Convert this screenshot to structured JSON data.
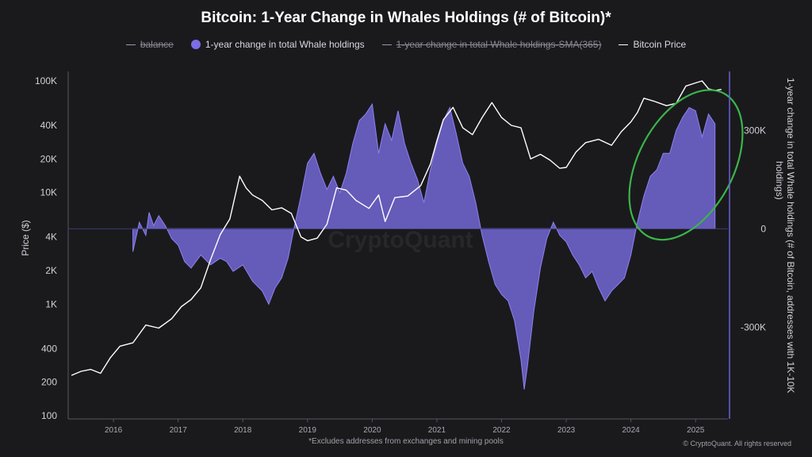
{
  "chart_data": {
    "type": "area",
    "title": "Bitcoin: 1-Year Change in Whales Holdings (# of Bitcoin)*",
    "legend": [
      {
        "label": "balance",
        "style": "line",
        "strikethrough": true
      },
      {
        "label": "1-year change in total Whale holdings",
        "style": "dot",
        "color": "#7b6ee6"
      },
      {
        "label": "1-year change in total Whale holdings-SMA(365)",
        "style": "line",
        "strikethrough": true
      },
      {
        "label": "Bitcoin Price",
        "style": "line",
        "color": "#ffffff"
      }
    ],
    "left_axis": {
      "label": "Price ($)",
      "scale": "log",
      "range": [
        100,
        100000
      ],
      "ticks": [
        {
          "value": 100000,
          "label": "100K"
        },
        {
          "value": 40000,
          "label": "40K"
        },
        {
          "value": 20000,
          "label": "20K"
        },
        {
          "value": 10000,
          "label": "10K"
        },
        {
          "value": 4000,
          "label": "4K"
        },
        {
          "value": 2000,
          "label": "2K"
        },
        {
          "value": 1000,
          "label": "1K"
        },
        {
          "value": 400,
          "label": "400"
        },
        {
          "value": 200,
          "label": "200"
        },
        {
          "value": 100,
          "label": "100"
        }
      ]
    },
    "right_axis": {
      "label": "1-year change in total Whale holdings (# of Bitcoin, addresses with 1K-10K holdings)",
      "range": [
        -580000,
        480000
      ],
      "ticks": [
        {
          "value": 300000,
          "label": "300K"
        },
        {
          "value": 0,
          "label": "0"
        },
        {
          "value": -300000,
          "label": "-300K"
        }
      ]
    },
    "x_axis": {
      "range": [
        2015.3,
        2025.5
      ],
      "ticks": [
        {
          "value": 2016,
          "label": "2016"
        },
        {
          "value": 2017,
          "label": "2017"
        },
        {
          "value": 2018,
          "label": "2018"
        },
        {
          "value": 2019,
          "label": "2019"
        },
        {
          "value": 2020,
          "label": "2020"
        },
        {
          "value": 2021,
          "label": "2021"
        },
        {
          "value": 2022,
          "label": "2022"
        },
        {
          "value": 2023,
          "label": "2023"
        },
        {
          "value": 2024,
          "label": "2024"
        },
        {
          "value": 2025,
          "label": "2025"
        }
      ]
    },
    "series": [
      {
        "name": "Bitcoin Price",
        "axis": "left",
        "color": "#ffffff",
        "points": [
          [
            2015.35,
            230
          ],
          [
            2015.5,
            250
          ],
          [
            2015.65,
            260
          ],
          [
            2015.8,
            240
          ],
          [
            2015.95,
            330
          ],
          [
            2016.1,
            420
          ],
          [
            2016.3,
            450
          ],
          [
            2016.5,
            650
          ],
          [
            2016.7,
            610
          ],
          [
            2016.9,
            740
          ],
          [
            2017.05,
            950
          ],
          [
            2017.2,
            1100
          ],
          [
            2017.35,
            1400
          ],
          [
            2017.5,
            2500
          ],
          [
            2017.65,
            4200
          ],
          [
            2017.8,
            5800
          ],
          [
            2017.95,
            14000
          ],
          [
            2018.05,
            11000
          ],
          [
            2018.15,
            9500
          ],
          [
            2018.3,
            8500
          ],
          [
            2018.45,
            7000
          ],
          [
            2018.6,
            7300
          ],
          [
            2018.75,
            6500
          ],
          [
            2018.9,
            4000
          ],
          [
            2019.0,
            3700
          ],
          [
            2019.15,
            3900
          ],
          [
            2019.3,
            5200
          ],
          [
            2019.45,
            11000
          ],
          [
            2019.6,
            10500
          ],
          [
            2019.75,
            8500
          ],
          [
            2019.95,
            7200
          ],
          [
            2020.1,
            9500
          ],
          [
            2020.2,
            5500
          ],
          [
            2020.35,
            9000
          ],
          [
            2020.55,
            9300
          ],
          [
            2020.75,
            11500
          ],
          [
            2020.9,
            18000
          ],
          [
            2021.0,
            29000
          ],
          [
            2021.1,
            45000
          ],
          [
            2021.25,
            58000
          ],
          [
            2021.4,
            38000
          ],
          [
            2021.55,
            33000
          ],
          [
            2021.7,
            47000
          ],
          [
            2021.85,
            64000
          ],
          [
            2022.0,
            47000
          ],
          [
            2022.15,
            40000
          ],
          [
            2022.3,
            38000
          ],
          [
            2022.45,
            20000
          ],
          [
            2022.6,
            22000
          ],
          [
            2022.75,
            19500
          ],
          [
            2022.9,
            16500
          ],
          [
            2023.0,
            16800
          ],
          [
            2023.15,
            23000
          ],
          [
            2023.3,
            28000
          ],
          [
            2023.5,
            30000
          ],
          [
            2023.7,
            26500
          ],
          [
            2023.85,
            35000
          ],
          [
            2024.0,
            43000
          ],
          [
            2024.1,
            52000
          ],
          [
            2024.2,
            70000
          ],
          [
            2024.35,
            66000
          ],
          [
            2024.55,
            60000
          ],
          [
            2024.7,
            63000
          ],
          [
            2024.85,
            90000
          ],
          [
            2025.0,
            96000
          ],
          [
            2025.1,
            100000
          ],
          [
            2025.2,
            85000
          ],
          [
            2025.3,
            82000
          ],
          [
            2025.4,
            84000
          ]
        ]
      },
      {
        "name": "1-year change in total Whale holdings",
        "axis": "right",
        "color": "#7b6ee6",
        "points": [
          [
            2016.3,
            -70000
          ],
          [
            2016.4,
            20000
          ],
          [
            2016.5,
            -20000
          ],
          [
            2016.55,
            50000
          ],
          [
            2016.62,
            10000
          ],
          [
            2016.7,
            40000
          ],
          [
            2016.8,
            10000
          ],
          [
            2016.9,
            -30000
          ],
          [
            2017.0,
            -50000
          ],
          [
            2017.1,
            -100000
          ],
          [
            2017.2,
            -120000
          ],
          [
            2017.35,
            -80000
          ],
          [
            2017.5,
            -110000
          ],
          [
            2017.65,
            -90000
          ],
          [
            2017.75,
            -100000
          ],
          [
            2017.85,
            -130000
          ],
          [
            2018.0,
            -110000
          ],
          [
            2018.15,
            -160000
          ],
          [
            2018.3,
            -190000
          ],
          [
            2018.4,
            -230000
          ],
          [
            2018.5,
            -180000
          ],
          [
            2018.6,
            -150000
          ],
          [
            2018.7,
            -90000
          ],
          [
            2018.8,
            10000
          ],
          [
            2018.9,
            100000
          ],
          [
            2019.0,
            200000
          ],
          [
            2019.1,
            230000
          ],
          [
            2019.2,
            170000
          ],
          [
            2019.3,
            120000
          ],
          [
            2019.4,
            160000
          ],
          [
            2019.5,
            110000
          ],
          [
            2019.6,
            170000
          ],
          [
            2019.7,
            260000
          ],
          [
            2019.8,
            330000
          ],
          [
            2019.9,
            350000
          ],
          [
            2020.0,
            380000
          ],
          [
            2020.1,
            230000
          ],
          [
            2020.2,
            320000
          ],
          [
            2020.3,
            270000
          ],
          [
            2020.4,
            360000
          ],
          [
            2020.5,
            260000
          ],
          [
            2020.6,
            200000
          ],
          [
            2020.7,
            150000
          ],
          [
            2020.8,
            80000
          ],
          [
            2020.9,
            180000
          ],
          [
            2021.0,
            260000
          ],
          [
            2021.1,
            330000
          ],
          [
            2021.2,
            370000
          ],
          [
            2021.3,
            290000
          ],
          [
            2021.4,
            200000
          ],
          [
            2021.5,
            160000
          ],
          [
            2021.6,
            80000
          ],
          [
            2021.7,
            -20000
          ],
          [
            2021.8,
            -100000
          ],
          [
            2021.9,
            -170000
          ],
          [
            2022.0,
            -200000
          ],
          [
            2022.1,
            -220000
          ],
          [
            2022.2,
            -280000
          ],
          [
            2022.3,
            -400000
          ],
          [
            2022.35,
            -490000
          ],
          [
            2022.4,
            -420000
          ],
          [
            2022.5,
            -250000
          ],
          [
            2022.6,
            -120000
          ],
          [
            2022.7,
            -30000
          ],
          [
            2022.8,
            20000
          ],
          [
            2022.9,
            -20000
          ],
          [
            2023.0,
            -40000
          ],
          [
            2023.1,
            -80000
          ],
          [
            2023.2,
            -110000
          ],
          [
            2023.3,
            -150000
          ],
          [
            2023.4,
            -130000
          ],
          [
            2023.5,
            -180000
          ],
          [
            2023.6,
            -220000
          ],
          [
            2023.7,
            -190000
          ],
          [
            2023.8,
            -170000
          ],
          [
            2023.9,
            -150000
          ],
          [
            2024.0,
            -80000
          ],
          [
            2024.1,
            20000
          ],
          [
            2024.2,
            100000
          ],
          [
            2024.3,
            160000
          ],
          [
            2024.4,
            180000
          ],
          [
            2024.5,
            230000
          ],
          [
            2024.6,
            230000
          ],
          [
            2024.7,
            300000
          ],
          [
            2024.8,
            340000
          ],
          [
            2024.9,
            370000
          ],
          [
            2025.0,
            360000
          ],
          [
            2025.1,
            280000
          ],
          [
            2025.2,
            350000
          ],
          [
            2025.3,
            320000
          ]
        ]
      }
    ],
    "zero_line_color": "#3d3d75",
    "highlight_ellipse_color": "#3bb54a",
    "watermark": "CryptoQuant",
    "grid": false
  },
  "footnote": "*Excludes addresses from exchanges and mining pools",
  "credit": "© CryptoQuant. All rights reserved"
}
